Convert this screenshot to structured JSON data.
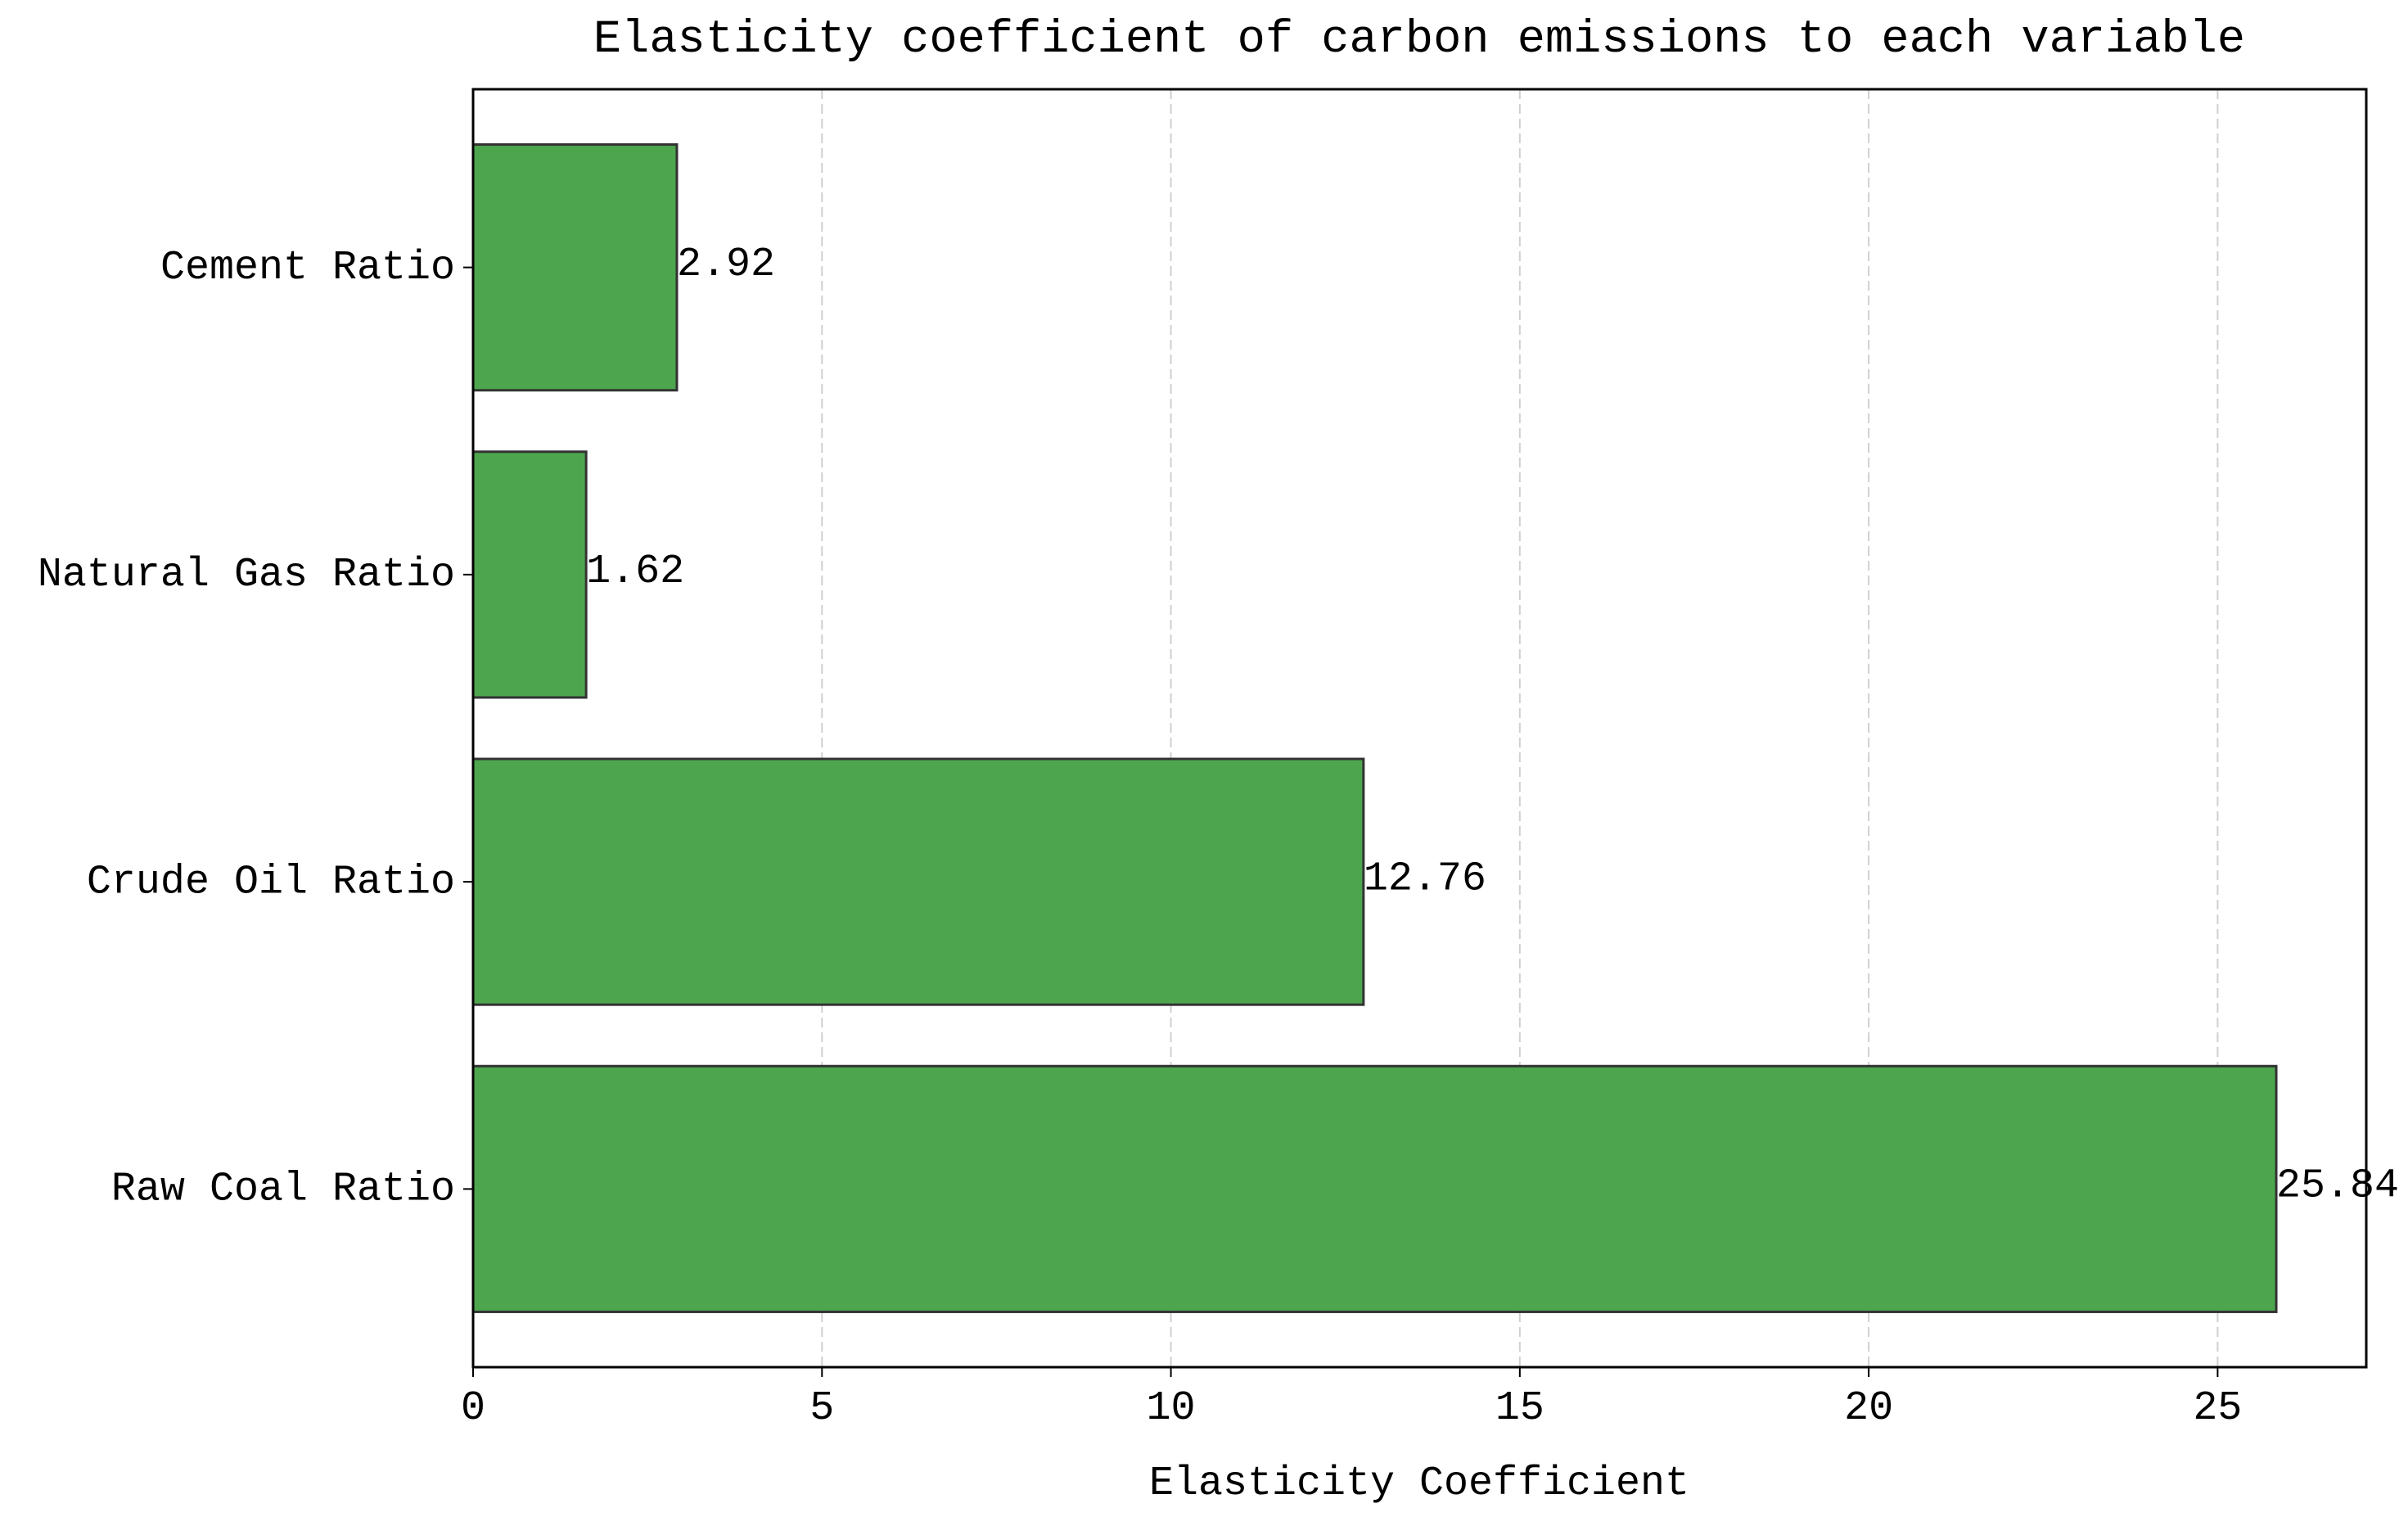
{
  "chart_data": {
    "type": "barh",
    "title": "Elasticity coefficient of carbon emissions to each variable",
    "xlabel": "Elasticity Coefficient",
    "categories": [
      "Raw Coal Ratio",
      "Crude Oil Ratio",
      "Natural Gas Ratio",
      "Cement Ratio"
    ],
    "values": [
      25.84,
      12.76,
      1.62,
      2.92
    ],
    "color": "#4da64d",
    "edgecolor": "#333333",
    "xlim": [
      0,
      27.13
    ],
    "xticks": [
      0,
      5,
      10,
      15,
      20,
      25
    ],
    "grid": true
  }
}
